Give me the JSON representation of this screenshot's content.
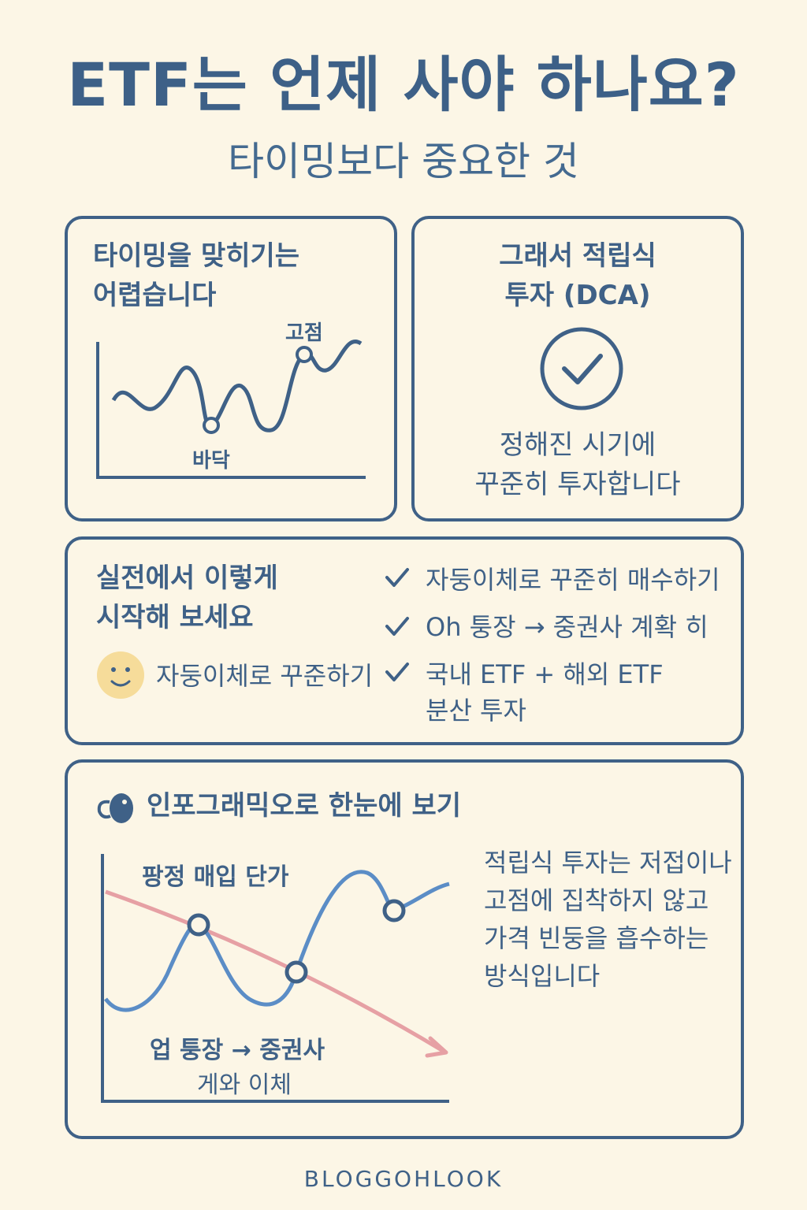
{
  "header": {
    "title": "ETF는 언제 사야 하나요?",
    "subtitle": "타이밍보다 중요한 것"
  },
  "timing_card": {
    "heading_line1": "타이밍을 맞히기는",
    "heading_line2": "어렵습니다",
    "label_peak": "고점",
    "label_bottom": "바닥"
  },
  "dca_card": {
    "heading_line1": "그래서 적립식",
    "heading_line2": "투자 (DCA)",
    "icon": "check-circle-icon",
    "body_line1": "정해진 시기에",
    "body_line2": "꾸준히 투자합니다"
  },
  "start_card": {
    "heading_line1": "실전에서 이렇게",
    "heading_line2": "시작해 보세요",
    "emoji_icon": "smiley-face-icon",
    "emoji_label": "자둥이체로 꾸준하기",
    "checklist": [
      {
        "line1": "자둥이체로 꾸준히 매수하기",
        "line2": ""
      },
      {
        "line1": "Oh 퉁장 → 중권사 계확 히",
        "line2": ""
      },
      {
        "line1": "국내 ETF + 해외 ETF",
        "line2": "분산 투자"
      }
    ]
  },
  "info_card": {
    "icon": "piggy-icon",
    "heading": "인포그래믹오로 한눈에 보기",
    "chart_label_top": "팡정 매입 단가",
    "chart_label_bottom_line1": "업 퉁장 → 중권사",
    "chart_label_bottom_line2": "게와 이체",
    "desc_line1": "적립식 투자는 저접이나",
    "desc_line2": "고점에 집착하지 않고",
    "desc_line3": "가격 빈둥을 흡수하는",
    "desc_line4": "방식입니다"
  },
  "footer": {
    "brand": "BLOGGOHLOOK"
  },
  "colors": {
    "background": "#fcf6e6",
    "primary": "#3f6187",
    "line_blue": "#5b8dc6",
    "line_pink": "#e6a0a4"
  }
}
